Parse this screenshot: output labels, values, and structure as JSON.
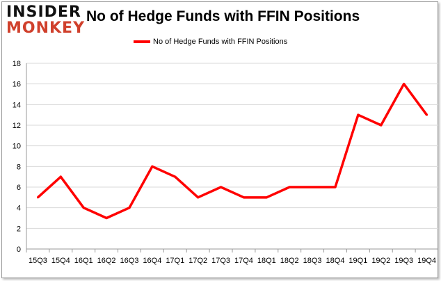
{
  "logo": {
    "line1": "INSIDER",
    "line2": "MONKEY"
  },
  "chart_data": {
    "type": "line",
    "title": "No of Hedge Funds with FFIN Positions",
    "categories": [
      "15Q3",
      "15Q4",
      "16Q1",
      "16Q2",
      "16Q3",
      "16Q4",
      "17Q1",
      "17Q2",
      "17Q3",
      "17Q4",
      "18Q1",
      "18Q2",
      "18Q3",
      "18Q4",
      "19Q1",
      "19Q2",
      "19Q3",
      "19Q4"
    ],
    "series": [
      {
        "name": "No of Hedge Funds with FFIN Positions",
        "values": [
          5,
          7,
          4,
          3,
          4,
          8,
          7,
          5,
          6,
          5,
          5,
          6,
          6,
          6,
          13,
          12,
          16,
          13
        ],
        "color": "#ff0000"
      }
    ],
    "ylim": [
      0,
      18
    ],
    "yticks": [
      0,
      2,
      4,
      6,
      8,
      10,
      12,
      14,
      16,
      18
    ],
    "grid": true,
    "legend": "top"
  }
}
